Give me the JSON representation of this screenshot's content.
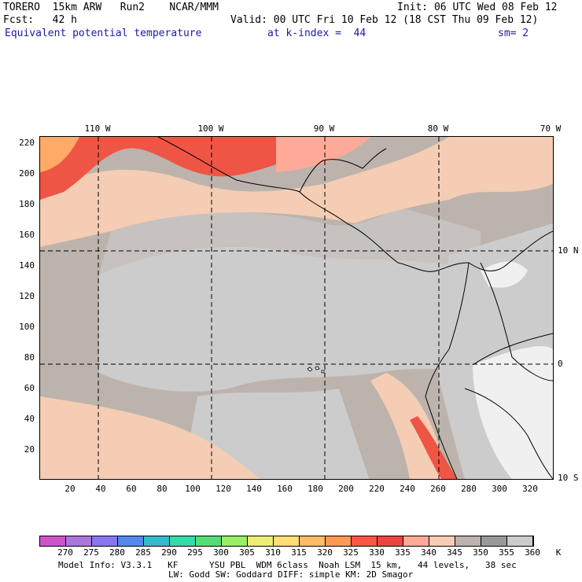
{
  "header": {
    "line1_left": "TORERO  15km ARW   Run2    NCAR/MMM",
    "line1_right": "Init: 06 UTC Wed 08 Feb 12",
    "line2_left": "Fcst:   42 h",
    "line2_right": "Valid: 00 UTC Fri 10 Feb 12 (18 CST Thu 09 Feb 12)",
    "field": "Equivalent potential temperature",
    "level": "at k-index =  44",
    "smooth": "sm= 2"
  },
  "axes": {
    "lon_top": [
      "110 W",
      "100 W",
      "90 W",
      "80 W",
      "70 W"
    ],
    "lat_right": [
      "10 N",
      "0",
      "10 S"
    ],
    "y_ticks": [
      "220",
      "200",
      "180",
      "160",
      "140",
      "120",
      "100",
      "80",
      "60",
      "40",
      "20"
    ],
    "x_ticks": [
      "20",
      "40",
      "60",
      "80",
      "100",
      "120",
      "140",
      "160",
      "180",
      "200",
      "220",
      "240",
      "260",
      "280",
      "300",
      "320"
    ]
  },
  "colorbar": {
    "colors": [
      "#cc55cc",
      "#aa77dd",
      "#8877ee",
      "#5588ee",
      "#33bbcc",
      "#33ddaa",
      "#55dd77",
      "#99ee66",
      "#eeee77",
      "#ffdd77",
      "#ffbb66",
      "#ff9955",
      "#ff5544",
      "#ee4444",
      "#ffaa99",
      "#f4cdb4",
      "#bdb3ad",
      "#999999",
      "#cccccc",
      "#ffffff"
    ],
    "labels": [
      "270",
      "275",
      "280",
      "285",
      "290",
      "295",
      "300",
      "305",
      "310",
      "315",
      "320",
      "325",
      "330",
      "335",
      "340",
      "345",
      "350",
      "355",
      "360",
      "K"
    ]
  },
  "footer": {
    "line1": "Model Info: V3.3.1   KF      YSU PBL  WDM 6class  Noah LSM  15 km,   44 levels,   38 sec",
    "line2": "LW: Godd SW: Goddard DIFF: simple KM: 2D Smagor"
  },
  "map_colors": {
    "base": "#bdb3ad",
    "gray": "#cccccc",
    "peach": "#f4cdb4",
    "salmon": "#ffaa99",
    "red": "#ee5544",
    "orange": "#ffaa66",
    "white": "#f0f0f0"
  }
}
